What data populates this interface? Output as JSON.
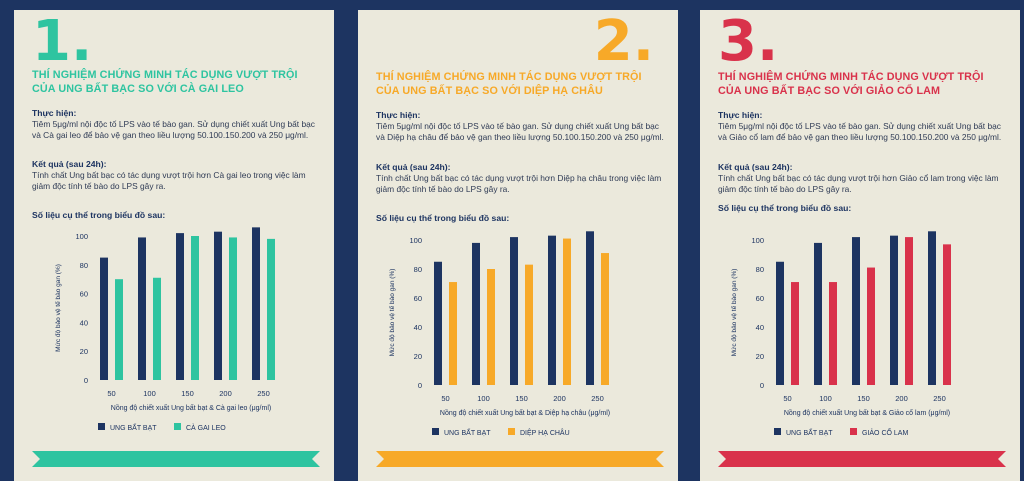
{
  "panels": [
    {
      "number": "1.",
      "title": "THÍ NGHIỆM CHỨNG MINH TÁC DỤNG VƯỢT TRỘI CỦA UNG BẤT BẠC SO VỚI CÀ GAI LEO",
      "method_label": "Thực hiện:",
      "method_text": "Tiêm 5μg/ml nội độc tố LPS vào tế bào gan. Sử dụng chiết xuất Ung bất bạc và Cà gai leo để bảo vệ gan theo liều lượng 50.100.150.200 và 250 μg/ml.",
      "result_label": "Kết quả (sau 24h):",
      "result_text": "Tính chất Ung bất bạc có tác dụng vượt trội hơn Cà gai leo trong việc làm giảm độc tính tế bào do LPS gây ra.",
      "data_label": "Số liệu cụ thể trong biểu đồ sau:",
      "accent": "#2ec4a0"
    },
    {
      "number": "2.",
      "title": "THÍ NGHIỆM CHỨNG MINH TÁC DỤNG VƯỢT TRỘI CỦA UNG BẤT BẠC SO VỚI DIỆP HẠ CHÂU",
      "method_label": "Thực hiện:",
      "method_text": "Tiêm 5μg/ml nội độc tố LPS vào tế bào gan. Sử dụng chiết xuất Ung bất bạc và Diệp hạ châu để bảo vệ gan theo liều lượng 50.100.150.200 và 250 μg/ml.",
      "result_label": "Kết quả (sau 24h):",
      "result_text": "Tính chất Ung bất bạc có tác dụng vượt trội hơn Diệp hạ châu trong việc làm giảm độc tính tế bào do LPS gây ra.",
      "data_label": "Số liệu cụ thể trong biểu đồ sau:",
      "accent": "#f7a928"
    },
    {
      "number": "3.",
      "title": "THÍ NGHIỆM CHỨNG MINH TÁC DỤNG VƯỢT TRỘI CỦA UNG BẤT BẠC SO VỚI GIẢO CỔ LAM",
      "method_label": "Thực hiện:",
      "method_text": "Tiêm 5μg/ml nội độc tố LPS vào tế bào gan. Sử dụng chiết xuất Ung bất bạc và Giảo cổ lam để bảo vệ gan theo liều lượng 50.100.150.200 và 250 μg/ml.",
      "result_label": "Kết quả (sau 24h):",
      "result_text": "Tính chất Ung bất bạc có tác dụng vượt trội hơn Giảo cổ lam trong việc làm giảm độc tính tế bào do LPS gây ra.",
      "data_label": "Số liệu cụ thể trong biểu đồ sau:",
      "accent": "#d9324b"
    }
  ],
  "chart_data": [
    {
      "type": "bar",
      "categories": [
        "50",
        "100",
        "150",
        "200",
        "250"
      ],
      "series": [
        {
          "name": "UNG BẤT BẠT",
          "values": [
            85,
            99,
            102,
            103,
            106
          ],
          "color": "#1d3461"
        },
        {
          "name": "CÀ GAI LEO",
          "values": [
            70,
            71,
            100,
            99,
            98
          ],
          "color": "#2ec4a0"
        }
      ],
      "xlabel": "Nồng độ chiết xuất Ung bất bạt & Cà gai leo (μg/ml)",
      "ylabel": "Mức độ bảo vệ tế bào gan (%)",
      "ylim": [
        0,
        100
      ],
      "yticks": [
        "0",
        "20",
        "40",
        "60",
        "80",
        "100"
      ],
      "legend_position": "bottom"
    },
    {
      "type": "bar",
      "categories": [
        "50",
        "100",
        "150",
        "200",
        "250"
      ],
      "series": [
        {
          "name": "UNG BẤT BẠT",
          "values": [
            85,
            98,
            102,
            103,
            106
          ],
          "color": "#1d3461"
        },
        {
          "name": "DIỆP HẠ CHÂU",
          "values": [
            71,
            80,
            83,
            101,
            91
          ],
          "color": "#f7a928"
        }
      ],
      "xlabel": "Nồng độ chiết xuất Ung bất bạt & Diệp hạ châu (μg/ml)",
      "ylabel": "Mức độ bảo vệ tế bào gan (%)",
      "ylim": [
        0,
        100
      ],
      "yticks": [
        "0",
        "20",
        "40",
        "60",
        "80",
        "100"
      ],
      "legend_position": "bottom"
    },
    {
      "type": "bar",
      "categories": [
        "50",
        "100",
        "150",
        "200",
        "250"
      ],
      "series": [
        {
          "name": "UNG BẤT BẠT",
          "values": [
            85,
            98,
            102,
            103,
            106
          ],
          "color": "#1d3461"
        },
        {
          "name": "GIẢO CỔ LAM",
          "values": [
            71,
            71,
            81,
            102,
            97
          ],
          "color": "#d9324b"
        }
      ],
      "xlabel": "Nồng độ chiết xuất Ung bất bạt & Giảo cổ lam (μg/ml)",
      "ylabel": "Mức độ bảo vệ tế bào gan (%)",
      "ylim": [
        0,
        100
      ],
      "yticks": [
        "0",
        "20",
        "40",
        "60",
        "80",
        "100"
      ],
      "legend_position": "bottom"
    }
  ]
}
